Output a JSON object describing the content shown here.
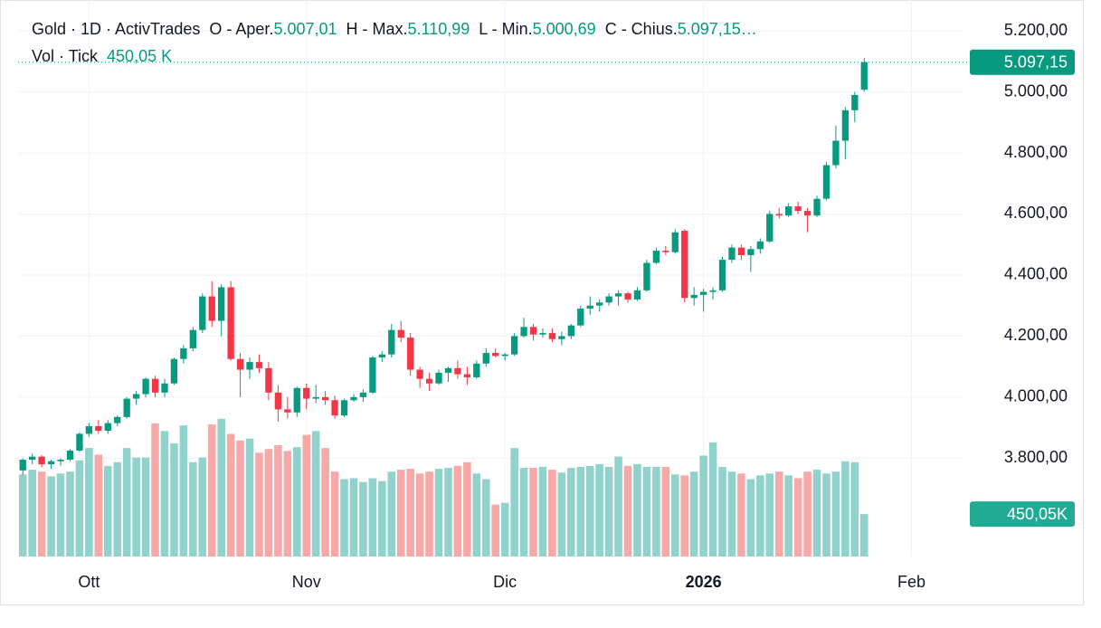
{
  "chart_data": {
    "type": "candlestick",
    "title": "Gold · 1D · ActivTrades",
    "ohlc_labels": [
      "O - Aper.",
      "H - Max.",
      "L - Min.",
      "C - Chius."
    ],
    "ohlc_value_labels": [
      "5.007,01",
      "5.110,99",
      "5.000,69",
      "5.097,15…"
    ],
    "volume_title": "Vol · Tick",
    "volume_value_label": "450,05 K",
    "last_price_label": "5.097,15",
    "last_volume_label": "450,05K",
    "up_color": "#089981",
    "down_color": "#f23645",
    "volume_up_color": "#92d2cc",
    "volume_down_color": "#f7a9a7",
    "open": [
      3760,
      3795,
      3805,
      3780,
      3790,
      3795,
      3825,
      3880,
      3905,
      3890,
      3915,
      3935,
      3995,
      4010,
      4060,
      4015,
      4045,
      4125,
      4160,
      4220,
      4330,
      4250,
      4360,
      4125,
      4090,
      4115,
      4095,
      4015,
      3960,
      3950,
      4030,
      3995,
      4000,
      3990,
      3940,
      3990,
      4000,
      4015,
      4130,
      4140,
      4220,
      4195,
      4090,
      4060,
      4045,
      4080,
      4095,
      4075,
      4065,
      4110,
      4145,
      4135,
      4140,
      4200,
      4230,
      4205,
      4210,
      4190,
      4200,
      4235,
      4290,
      4300,
      4310,
      4330,
      4340,
      4320,
      4350,
      4440,
      4480,
      4475,
      4545,
      4325,
      4335,
      4345,
      4350,
      4450,
      4490,
      4465,
      4485,
      4510,
      4600,
      4595,
      4625,
      4610,
      4595,
      4650,
      4760,
      4840,
      4940,
      5007.01
    ],
    "high": [
      3800,
      3815,
      3810,
      3795,
      3800,
      3830,
      3885,
      3915,
      3925,
      3925,
      3940,
      4000,
      4020,
      4065,
      4070,
      4060,
      4130,
      4170,
      4230,
      4340,
      4380,
      4370,
      4380,
      4145,
      4130,
      4140,
      4115,
      4040,
      4000,
      4035,
      4045,
      4040,
      4020,
      4005,
      3995,
      4010,
      4025,
      4135,
      4150,
      4240,
      4250,
      4210,
      4100,
      4080,
      4090,
      4100,
      4120,
      4100,
      4120,
      4160,
      4160,
      4145,
      4210,
      4260,
      4240,
      4225,
      4225,
      4215,
      4240,
      4300,
      4330,
      4320,
      4340,
      4350,
      4345,
      4360,
      4450,
      4490,
      4495,
      4550,
      4550,
      4360,
      4355,
      4360,
      4460,
      4500,
      4500,
      4495,
      4520,
      4610,
      4620,
      4635,
      4640,
      4620,
      4660,
      4770,
      4890,
      4950,
      5000,
      5110.99
    ],
    "low": [
      3745,
      3780,
      3770,
      3765,
      3775,
      3790,
      3820,
      3870,
      3880,
      3880,
      3905,
      3930,
      3975,
      4000,
      4000,
      4000,
      4040,
      4110,
      4150,
      4210,
      4230,
      4200,
      4120,
      4000,
      4060,
      4080,
      3990,
      3920,
      3930,
      3935,
      3960,
      3980,
      3975,
      3930,
      3935,
      3985,
      3985,
      4010,
      4115,
      4130,
      4180,
      4070,
      4030,
      4020,
      4040,
      4050,
      4060,
      4040,
      4060,
      4100,
      4130,
      4120,
      4135,
      4195,
      4185,
      4195,
      4180,
      4170,
      4190,
      4230,
      4270,
      4280,
      4300,
      4300,
      4310,
      4315,
      4345,
      4435,
      4465,
      4470,
      4310,
      4300,
      4280,
      4320,
      4345,
      4440,
      4450,
      4410,
      4470,
      4505,
      4585,
      4590,
      4600,
      4540,
      4590,
      4645,
      4750,
      4780,
      4900,
      5000.69
    ],
    "close": [
      3795,
      3805,
      3780,
      3790,
      3795,
      3825,
      3880,
      3905,
      3890,
      3915,
      3935,
      3995,
      4010,
      4060,
      4015,
      4045,
      4125,
      4160,
      4220,
      4330,
      4250,
      4360,
      4125,
      4090,
      4115,
      4095,
      4015,
      3960,
      3950,
      4030,
      3995,
      4000,
      3990,
      3940,
      3990,
      4000,
      4015,
      4130,
      4140,
      4220,
      4195,
      4090,
      4060,
      4045,
      4080,
      4095,
      4075,
      4065,
      4110,
      4145,
      4135,
      4140,
      4200,
      4230,
      4205,
      4210,
      4190,
      4200,
      4235,
      4290,
      4300,
      4310,
      4330,
      4340,
      4320,
      4350,
      4440,
      4480,
      4475,
      4540,
      4325,
      4335,
      4345,
      4350,
      4450,
      4490,
      4465,
      4485,
      4510,
      4600,
      4595,
      4625,
      4610,
      4595,
      4650,
      4760,
      4840,
      4940,
      4990,
      5097.15
    ],
    "volume": [
      870,
      920,
      900,
      850,
      880,
      900,
      1020,
      1150,
      1080,
      960,
      1000,
      1150,
      1050,
      1050,
      1410,
      1330,
      1200,
      1390,
      1000,
      1050,
      1400,
      1460,
      1300,
      1230,
      1250,
      1100,
      1140,
      1180,
      1120,
      1160,
      1290,
      1330,
      1150,
      900,
      820,
      830,
      790,
      830,
      800,
      900,
      920,
      930,
      880,
      900,
      930,
      940,
      960,
      1000,
      880,
      820,
      550,
      570,
      1150,
      940,
      940,
      950,
      920,
      890,
      940,
      950,
      960,
      980,
      950,
      1060,
      960,
      980,
      950,
      950,
      950,
      870,
      860,
      900,
      1070,
      1210,
      950,
      900,
      880,
      820,
      860,
      880,
      900,
      860,
      830,
      900,
      920,
      880,
      900,
      1010,
      1000,
      450.05
    ],
    "ylim": [
      3478,
      5301
    ],
    "yticks": [
      {
        "value": 3800,
        "label": "3.800,00"
      },
      {
        "value": 4000,
        "label": "4.000,00"
      },
      {
        "value": 4200,
        "label": "4.200,00"
      },
      {
        "value": 4400,
        "label": "4.400,00"
      },
      {
        "value": 4600,
        "label": "4.600,00"
      },
      {
        "value": 4800,
        "label": "4.800,00"
      },
      {
        "value": 5000,
        "label": "5.000,00"
      },
      {
        "value": 5200,
        "label": "5.200,00"
      }
    ],
    "y2lim": [
      0,
      5900
    ],
    "xlim": [
      -0.5,
      99.5
    ],
    "xticks": [
      {
        "value": 7,
        "label": "Ott"
      },
      {
        "value": 30,
        "label": "Nov"
      },
      {
        "value": 51,
        "label": "Dic"
      },
      {
        "value": 72,
        "label": "2026"
      },
      {
        "value": 94,
        "label": "Feb"
      }
    ],
    "xtick_bold": [
      false,
      false,
      false,
      true,
      false
    ],
    "grid": true
  }
}
